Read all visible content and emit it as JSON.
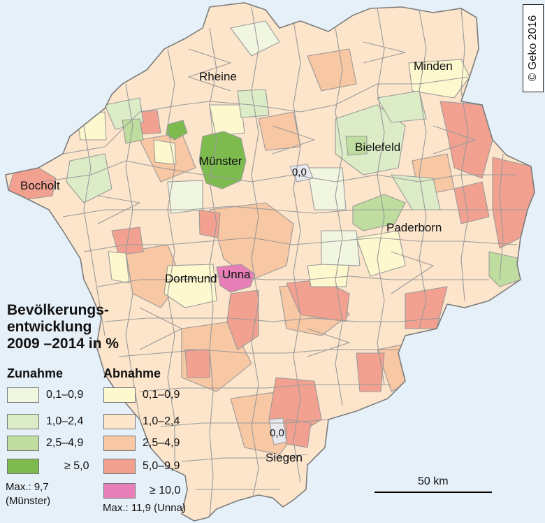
{
  "copyright": "© Geko 2016",
  "cities": [
    {
      "id": "rheine",
      "name": "Rheine"
    },
    {
      "id": "minden",
      "name": "Minden"
    },
    {
      "id": "bielefeld",
      "name": "Bielefeld"
    },
    {
      "id": "muenster",
      "name": "Münster"
    },
    {
      "id": "bocholt",
      "name": "Bocholt"
    },
    {
      "id": "paderborn",
      "name": "Paderborn"
    },
    {
      "id": "dortmund",
      "name": "Dortmund"
    },
    {
      "id": "unna",
      "name": "Unna"
    },
    {
      "id": "siegen",
      "name": "Siegen"
    }
  ],
  "zero_labels": [
    "0,0",
    "0,0"
  ],
  "legend": {
    "title": [
      "Bevölkerungs-",
      "entwicklung",
      "2009 –2014 in %"
    ],
    "increase": {
      "heading": "Zunahme",
      "classes": [
        {
          "range": "0,1–0,9",
          "color": "#f1f6e1"
        },
        {
          "range": "1,0–2,4",
          "color": "#dcecc7"
        },
        {
          "range": "2,5–4,9",
          "color": "#bedd9e"
        },
        {
          "range": "≥ 5,0",
          "color": "#7dbb4e"
        }
      ],
      "max": [
        "Max.: 9,7",
        "(Münster)"
      ]
    },
    "decrease": {
      "heading": "Abnahme",
      "classes": [
        {
          "range": "0,1–0,9",
          "color": "#fdf8cd"
        },
        {
          "range": "1,0–2,4",
          "color": "#fce5cb"
        },
        {
          "range": "2,5–4,9",
          "color": "#f8c7a4"
        },
        {
          "range": "5,0–9,9",
          "color": "#f2a190"
        },
        {
          "range": "≥ 10,0",
          "color": "#e87eb7"
        }
      ],
      "max": [
        "Max.: 11,9 (Unna)"
      ]
    }
  },
  "scale": {
    "label": "50 km"
  }
}
